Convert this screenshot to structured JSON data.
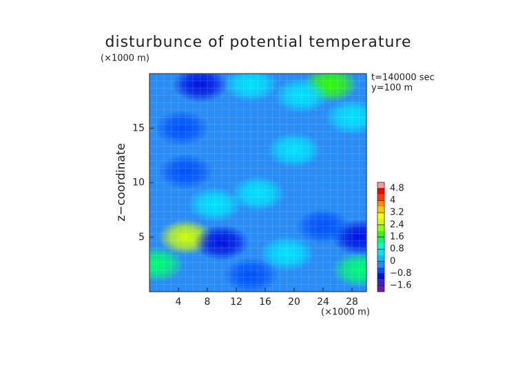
{
  "chart_data": {
    "type": "contour",
    "title": "disturbunce of potential temperature",
    "y_unit": "(×1000 m)",
    "x_unit": "(×1000 m)",
    "ylabel": "z−coordinate",
    "annotations": [
      "t=140000 sec",
      "y=100 m"
    ],
    "xlim": [
      0,
      30
    ],
    "ylim": [
      0,
      20
    ],
    "xticks": [
      4,
      8,
      12,
      16,
      20,
      24,
      28
    ],
    "yticks": [
      5,
      10,
      15
    ],
    "grid": true,
    "field_color": "#2a8cf5",
    "features": [
      {
        "x": 5,
        "z": 5,
        "value": 2.4
      },
      {
        "x": 25,
        "z": 19,
        "value": 1.6
      },
      {
        "x": 1,
        "z": 2.5,
        "value": 1.2
      },
      {
        "x": 29,
        "z": 2,
        "value": 1.2
      },
      {
        "x": 14,
        "z": 19,
        "value": 0.8
      },
      {
        "x": 19,
        "z": 3.5,
        "value": 0.4
      },
      {
        "x": 20,
        "z": 13,
        "value": 0.4
      },
      {
        "x": 21,
        "z": 18,
        "value": 0.4
      },
      {
        "x": 28,
        "z": 16,
        "value": 0.4
      },
      {
        "x": 9,
        "z": 8,
        "value": 0.4
      },
      {
        "x": 15,
        "z": 9,
        "value": 0.4
      },
      {
        "x": 7,
        "z": 19,
        "value": -1.2
      },
      {
        "x": 10,
        "z": 4.5,
        "value": -1.2
      },
      {
        "x": 29,
        "z": 5,
        "value": -1.2
      },
      {
        "x": 24,
        "z": 6,
        "value": -0.8
      },
      {
        "x": 5,
        "z": 11,
        "value": -0.8
      },
      {
        "x": 4.5,
        "z": 15,
        "value": -0.8
      },
      {
        "x": 14,
        "z": 1.5,
        "value": -0.8
      }
    ],
    "colorbar": {
      "lim": [
        -2.0,
        5.2
      ],
      "ticks": [
        {
          "value": -1.6,
          "label": "−1.6"
        },
        {
          "value": -0.8,
          "label": "−0.8"
        },
        0,
        0.8,
        1.6,
        2.4,
        3.2,
        4,
        4.8
      ],
      "colors": [
        "#6a1bb0",
        "#3c1fc8",
        "#0010e0",
        "#0050ff",
        "#1e8cff",
        "#00bfff",
        "#00e5ff",
        "#00ffd0",
        "#00ff70",
        "#30ff00",
        "#96ff00",
        "#d2ff00",
        "#ffff00",
        "#ffc800",
        "#ff8c00",
        "#ff3c00",
        "#ff0000",
        "#ff9a9a"
      ]
    }
  }
}
